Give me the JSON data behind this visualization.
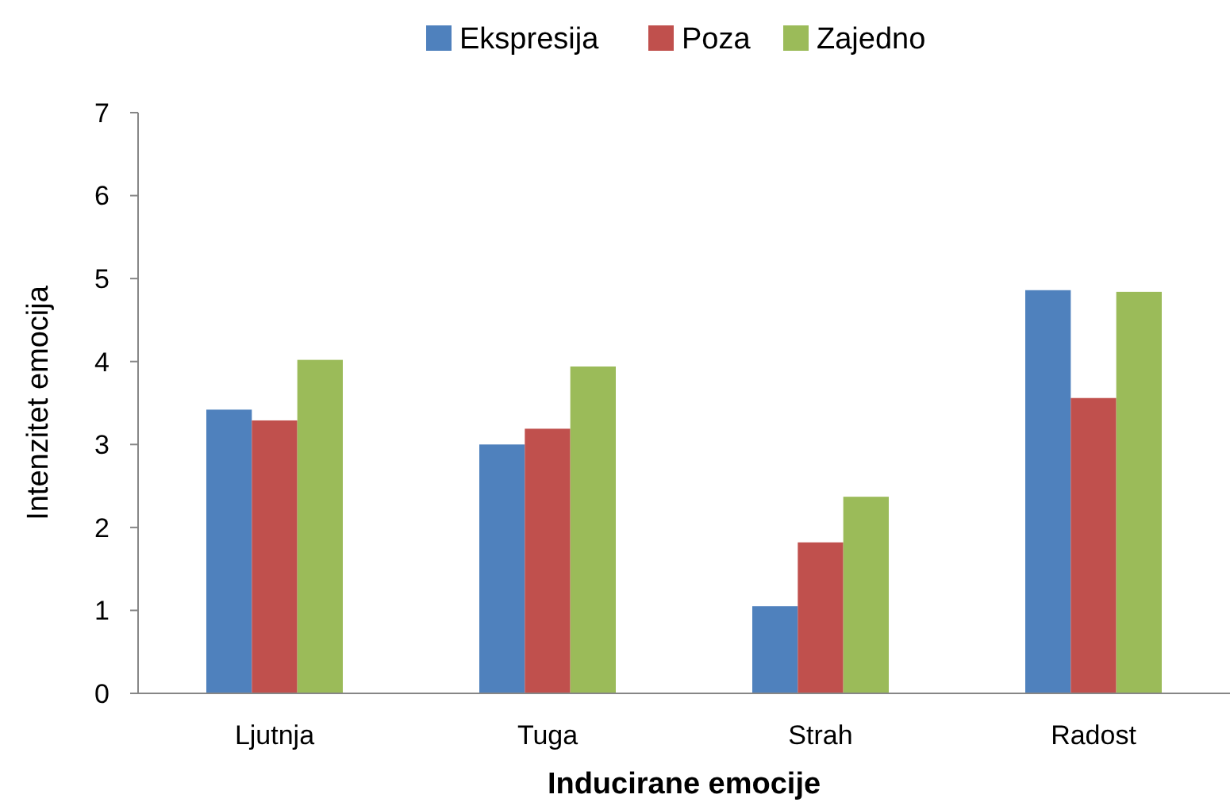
{
  "chart_data": {
    "type": "bar",
    "xlabel": "Inducirane emocije",
    "ylabel": "Intenzitet emocija",
    "categories": [
      "Ljutnja",
      "Tuga",
      "Strah",
      "Radost"
    ],
    "series": [
      {
        "name": "Ekspresija",
        "color": "#4f81bd",
        "values": [
          3.42,
          3.0,
          1.05,
          4.86
        ]
      },
      {
        "name": "Poza",
        "color": "#c0504d",
        "values": [
          3.29,
          3.19,
          1.82,
          3.56
        ]
      },
      {
        "name": "Zajedno",
        "color": "#9bbb59",
        "values": [
          4.02,
          3.94,
          2.37,
          4.84
        ]
      }
    ],
    "ylim": [
      0,
      7
    ],
    "yticks": [
      0,
      1,
      2,
      3,
      4,
      5,
      6,
      7
    ],
    "grid": false,
    "legend": "top"
  }
}
